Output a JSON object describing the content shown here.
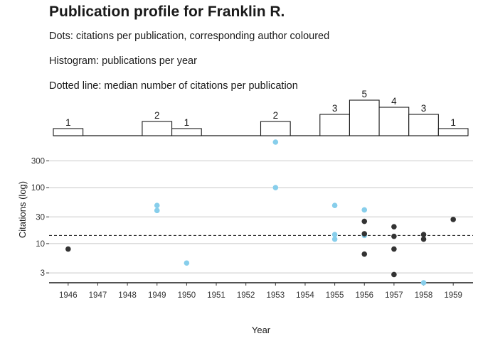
{
  "title": "Publication profile for Franklin R.",
  "subtitles": [
    "Dots: citations per publication, corresponding author coloured",
    "Histogram: publications per year",
    "Dotted line: median number of citations per publication"
  ],
  "colors": {
    "corresponding": "#87CEEB",
    "other": "#333333",
    "grid": "#c8c8c8",
    "axis": "#1a1a1a"
  },
  "chart_data": [
    {
      "type": "bar",
      "role": "histogram",
      "categories": [
        "1946",
        "1947",
        "1948",
        "1949",
        "1950",
        "1951",
        "1952",
        "1953",
        "1954",
        "1955",
        "1956",
        "1957",
        "1958",
        "1959"
      ],
      "values": [
        1,
        0,
        0,
        2,
        1,
        0,
        0,
        2,
        0,
        3,
        5,
        4,
        3,
        1
      ],
      "data_labels": [
        "1",
        "",
        "",
        "2",
        "1",
        "",
        "",
        "2",
        "",
        "3",
        "5",
        "4",
        "3",
        "1"
      ]
    },
    {
      "type": "scatter",
      "xlabel": "Year",
      "ylabel": "Citations (log)",
      "yscale": "log",
      "ylim": [
        2,
        650
      ],
      "yticks": [
        3,
        10,
        30,
        100,
        300
      ],
      "ytick_labels": [
        "3",
        "10",
        "30",
        "100",
        "300"
      ],
      "xticks": [
        "1946",
        "1947",
        "1948",
        "1949",
        "1950",
        "1951",
        "1952",
        "1953",
        "1954",
        "1955",
        "1956",
        "1957",
        "1958",
        "1959"
      ],
      "median_line": 14,
      "series": [
        {
          "colour_key": "corresponding",
          "points": [
            {
              "x": 1949,
              "y": 48
            },
            {
              "x": 1949,
              "y": 39
            },
            {
              "x": 1950,
              "y": 4.5
            },
            {
              "x": 1953,
              "y": 650
            },
            {
              "x": 1953,
              "y": 100
            },
            {
              "x": 1955,
              "y": 48
            },
            {
              "x": 1955,
              "y": 14.5
            },
            {
              "x": 1955,
              "y": 12
            },
            {
              "x": 1956,
              "y": 40
            },
            {
              "x": 1956,
              "y": 14
            },
            {
              "x": 1958,
              "y": 2
            }
          ]
        },
        {
          "colour_key": "other",
          "points": [
            {
              "x": 1946,
              "y": 8
            },
            {
              "x": 1956,
              "y": 25
            },
            {
              "x": 1956,
              "y": 15
            },
            {
              "x": 1956,
              "y": 6.5
            },
            {
              "x": 1957,
              "y": 20
            },
            {
              "x": 1957,
              "y": 13.5
            },
            {
              "x": 1957,
              "y": 8
            },
            {
              "x": 1957,
              "y": 2.8
            },
            {
              "x": 1958,
              "y": 14.5
            },
            {
              "x": 1958,
              "y": 12
            },
            {
              "x": 1959,
              "y": 27
            }
          ]
        }
      ]
    }
  ]
}
